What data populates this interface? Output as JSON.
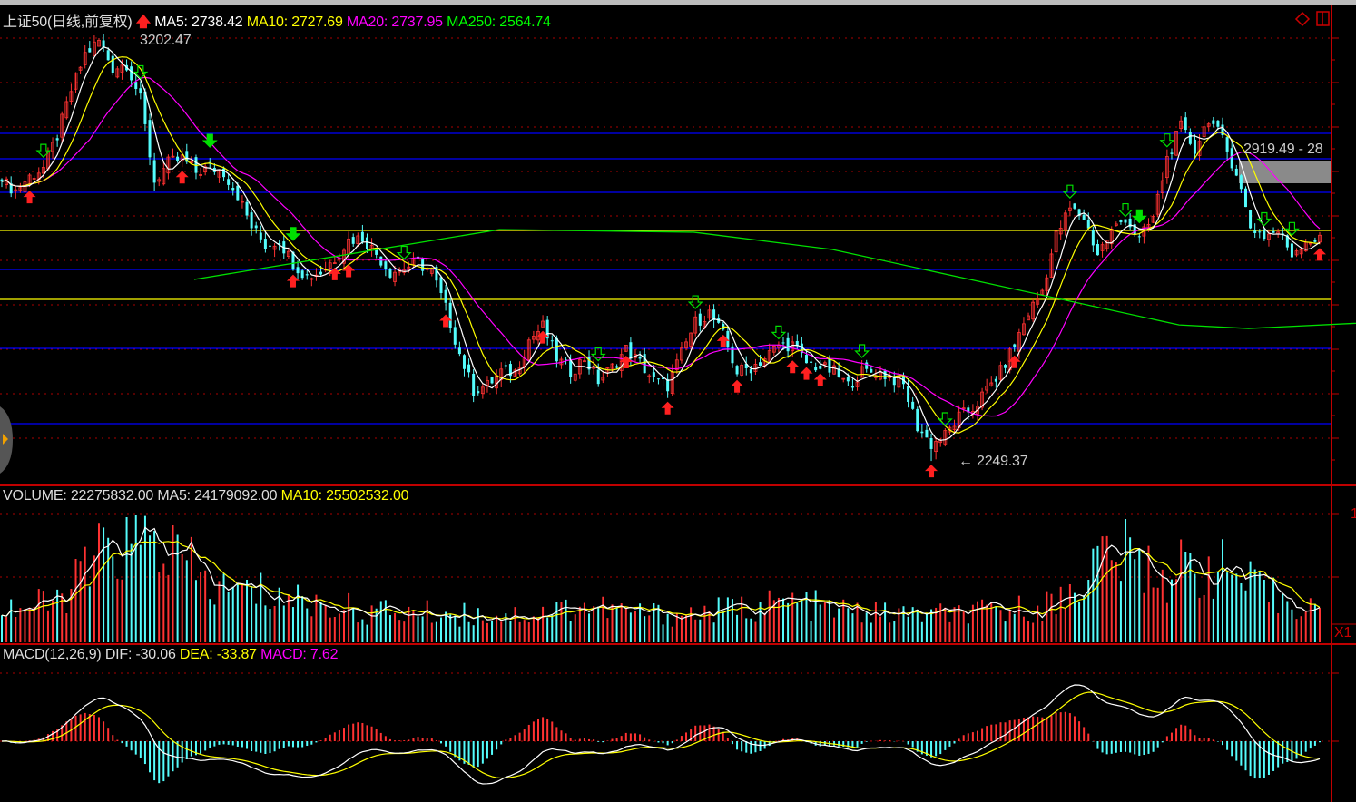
{
  "header": {
    "title": "上证50(日线,前复权)",
    "ma5": "MA5: 2738.42",
    "ma10": "MA10: 2727.69",
    "ma20": "MA20: 2737.95",
    "ma250": "MA250: 2564.74",
    "high_label": "3202.47",
    "low_label": "2249.37",
    "range_label": "2919.49 - 28"
  },
  "volume_header": {
    "volume": "VOLUME: 22275832.00",
    "ma5": "MA5: 24179092.00",
    "ma10": "MA10: 25502532.00",
    "axis_fragment": "1",
    "multiplier": "X1"
  },
  "macd_header": {
    "name": "MACD(12,26,9)",
    "dif": "DIF: -30.06",
    "dea": "DEA: -33.87",
    "macd": "MACD: 7.62"
  },
  "colors": {
    "background": "#000000",
    "up": "#ff3232",
    "down": "#54fcfc",
    "ma5": "#ffffff",
    "ma10": "#ffff00",
    "ma20": "#ff00ff",
    "ma250": "#00e000",
    "axis": "#c00000",
    "blue_line": "#0000ff",
    "yellow_line": "#ffff00"
  },
  "icons": {
    "diamond": "diamond-icon",
    "layout": "split-window-icon",
    "left_tab": "expand-left-icon"
  },
  "chart_data": {
    "type": "candlestick",
    "period": "daily",
    "high": 3202.47,
    "low": 2249.37,
    "price_axis_range": [
      2240,
      3210
    ],
    "approx_close_path": [
      2879,
      2859,
      2890,
      2910,
      2982,
      3084,
      3166,
      3196,
      3135,
      3145,
      3063,
      2879,
      2920,
      2931,
      2900,
      2910,
      2900,
      2849,
      2777,
      2736,
      2747,
      2695,
      2665,
      2675,
      2706,
      2747,
      2753,
      2716,
      2675,
      2685,
      2695,
      2675,
      2593,
      2491,
      2409,
      2419,
      2450,
      2450,
      2522,
      2552,
      2481,
      2450,
      2481,
      2430,
      2460,
      2501,
      2470,
      2430,
      2419,
      2491,
      2562,
      2583,
      2532,
      2450,
      2460,
      2481,
      2511,
      2511,
      2470,
      2460,
      2450,
      2419,
      2450,
      2450,
      2440,
      2419,
      2327,
      2286,
      2307,
      2348,
      2368,
      2409,
      2450,
      2511,
      2583,
      2634,
      2757,
      2818,
      2798,
      2716,
      2767,
      2798,
      2747,
      2798,
      2931,
      3002,
      2951,
      3023,
      2971,
      2900,
      2777,
      2757,
      2767,
      2716,
      2747,
      2747
    ],
    "ma250_path": [
      [
        14,
        2658.5
      ],
      [
        36,
        2771
      ],
      [
        50,
        2765
      ],
      [
        60,
        2726
      ],
      [
        75,
        2624
      ],
      [
        85,
        2556
      ],
      [
        90,
        2548
      ],
      [
        101,
        2564.74
      ]
    ],
    "horizontal_lines": {
      "blue": [
        2987.8,
        2930.5,
        2854.9,
        2681.0,
        2503.1,
        2333.4
      ],
      "yellow": [
        2769.0,
        2613.6
      ]
    },
    "volume_path_millions": [
      22,
      25,
      60,
      65,
      35,
      32,
      25,
      20,
      19,
      18,
      18,
      24,
      19,
      18,
      22,
      26,
      20,
      18,
      18,
      20,
      25,
      60,
      45,
      50,
      30,
      23
    ],
    "buy_signals": [
      2,
      13,
      21,
      24,
      25,
      32,
      39,
      45,
      48,
      52,
      53,
      57,
      58,
      59,
      67,
      73,
      95,
      96,
      99
    ],
    "sell_signals_hollow": [
      3,
      10,
      29,
      43,
      50,
      56,
      62,
      68,
      77,
      81,
      84,
      91,
      93
    ],
    "sell_signals_filled": [
      15,
      21,
      82
    ],
    "macd_params": [
      12,
      26,
      9
    ],
    "last": {
      "ma5": 2738.42,
      "ma10": 2727.69,
      "ma20": 2737.95,
      "ma250": 2564.74,
      "volume": 22275832,
      "vol_ma5": 24179092,
      "vol_ma10": 25502532,
      "dif": -30.06,
      "dea": -33.87,
      "macd": 7.62
    }
  }
}
